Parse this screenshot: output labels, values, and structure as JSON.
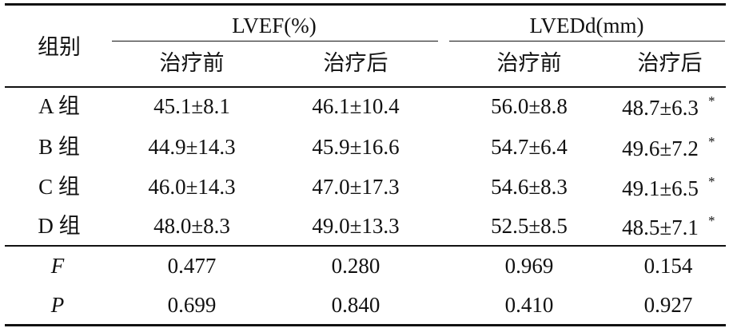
{
  "table": {
    "header": {
      "group_label": "组别",
      "lvef_label": "LVEF(%)",
      "lvedd_label": "LVEDd(mm)",
      "sub_headers": [
        "治疗前",
        "治疗后",
        "治疗前",
        "治疗后"
      ]
    },
    "rows": [
      {
        "group": "A 组",
        "lvef_before": "45.1±8.1",
        "lvef_after": "46.1±10.4",
        "lvedd_before": "56.0±8.8",
        "lvedd_after": "48.7±6.3",
        "mark": "*"
      },
      {
        "group": "B 组",
        "lvef_before": "44.9±14.3",
        "lvef_after": "45.9±16.6",
        "lvedd_before": "54.7±6.4",
        "lvedd_after": "49.6±7.2",
        "mark": "*"
      },
      {
        "group": "C 组",
        "lvef_before": "46.0±14.3",
        "lvef_after": "47.0±17.3",
        "lvedd_before": "54.6±8.3",
        "lvedd_after": "49.1±6.5",
        "mark": "*"
      },
      {
        "group": "D 组",
        "lvef_before": "48.0±8.3",
        "lvef_after": "49.0±13.3",
        "lvedd_before": "52.5±8.5",
        "lvedd_after": "48.5±7.1",
        "mark": "*"
      }
    ],
    "stats": [
      {
        "label": "F",
        "values": [
          "0.477",
          "0.280",
          "0.969",
          "0.154"
        ]
      },
      {
        "label": "P",
        "values": [
          "0.699",
          "0.840",
          "0.410",
          "0.927"
        ]
      }
    ]
  }
}
